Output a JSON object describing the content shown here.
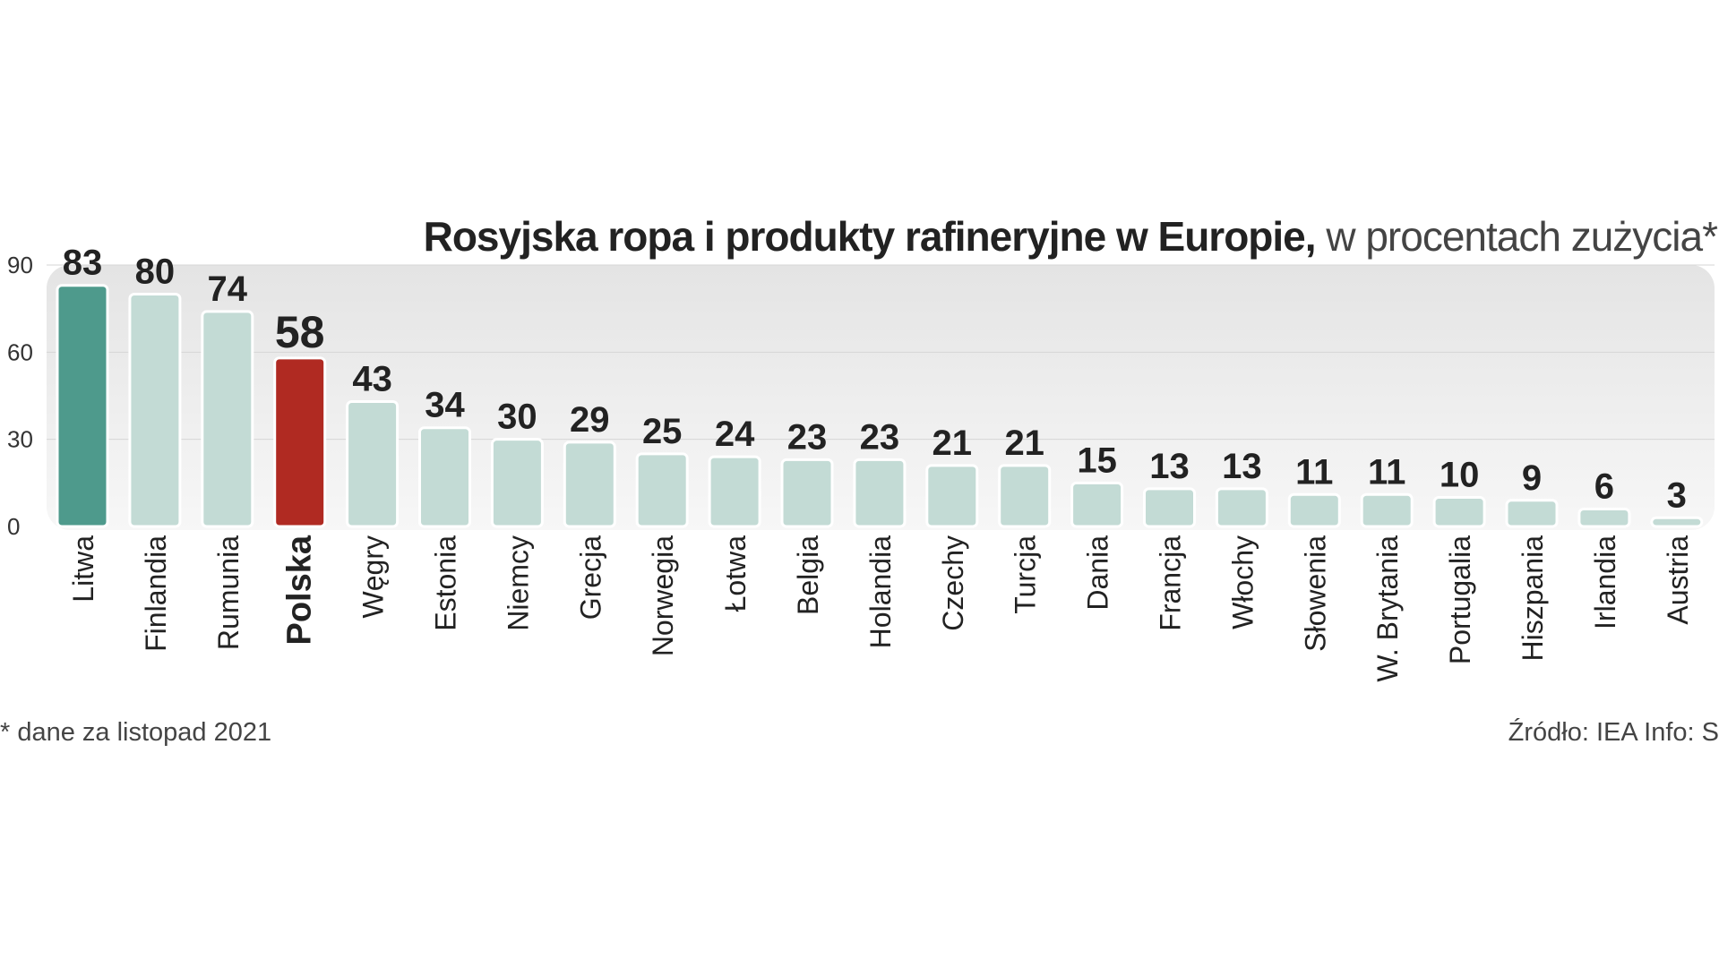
{
  "chart_data": {
    "type": "bar",
    "title": "Rosyjska ropa i produkty rafineryjne w Europie,",
    "subtitle": "w procentach zużycia*",
    "categories": [
      "Litwa",
      "Finlandia",
      "Rumunia",
      "Polska",
      "Węgry",
      "Estonia",
      "Niemcy",
      "Grecja",
      "Norwegia",
      "Łotwa",
      "Belgia",
      "Holandia",
      "Czechy",
      "Turcja",
      "Dania",
      "Francja",
      "Włochy",
      "Słowenia",
      "W. Brytania",
      "Portugalia",
      "Hiszpania",
      "Irlandia",
      "Austria"
    ],
    "values": [
      83,
      80,
      74,
      58,
      43,
      34,
      30,
      29,
      25,
      24,
      23,
      23,
      21,
      21,
      15,
      13,
      13,
      11,
      11,
      10,
      9,
      6,
      3
    ],
    "highlight": {
      "Litwa": "#4e9a8c",
      "Polska": "#b02a22"
    },
    "default_color": "#c3dbd5",
    "yticks": [
      0,
      30,
      60,
      90
    ],
    "ylim": [
      0,
      90
    ],
    "xlabel": "",
    "ylabel": "",
    "grid": true
  },
  "footnote": "* dane za listopad 2021",
  "source": "Źródło: IEA  Info: S"
}
